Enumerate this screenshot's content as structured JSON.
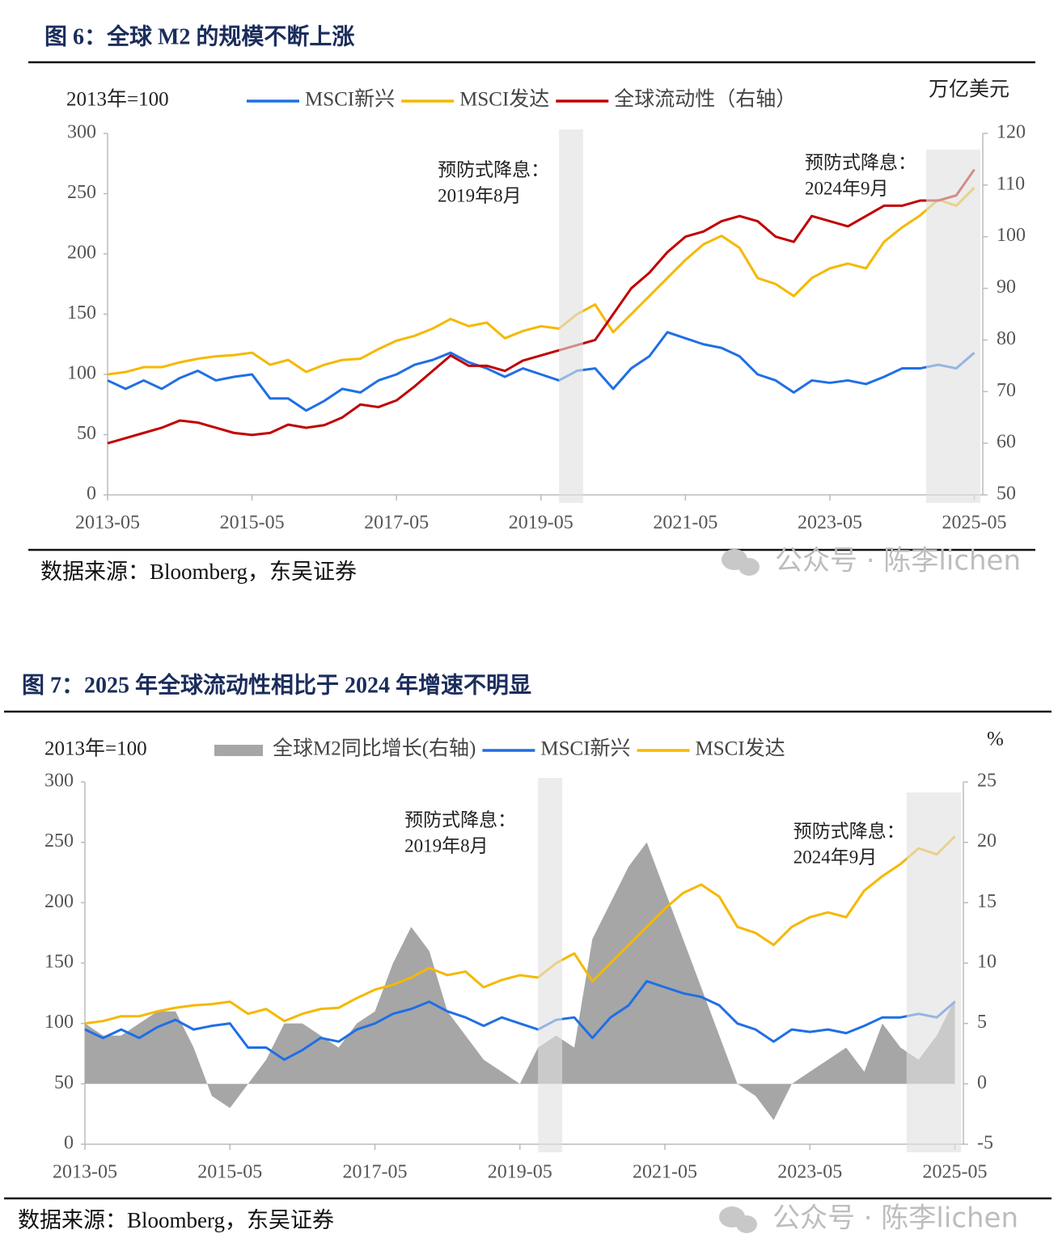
{
  "chart_data": [
    {
      "type": "line",
      "title": "图 6：全球 M2 的规模不断上涨",
      "ylabel": "2013年=100",
      "y2label": "万亿美元",
      "source": "数据来源：Bloomberg，东吴证券",
      "watermark": "公众号 · 陈李lichen",
      "x": [
        "2013-05",
        "2013-08",
        "2013-11",
        "2014-02",
        "2014-05",
        "2014-08",
        "2014-11",
        "2015-02",
        "2015-05",
        "2015-08",
        "2015-11",
        "2016-02",
        "2016-05",
        "2016-08",
        "2016-11",
        "2017-02",
        "2017-05",
        "2017-08",
        "2017-11",
        "2018-02",
        "2018-05",
        "2018-08",
        "2018-11",
        "2019-02",
        "2019-05",
        "2019-08",
        "2019-11",
        "2020-02",
        "2020-05",
        "2020-08",
        "2020-11",
        "2021-02",
        "2021-05",
        "2021-08",
        "2021-11",
        "2022-02",
        "2022-05",
        "2022-08",
        "2022-11",
        "2023-02",
        "2023-05",
        "2023-08",
        "2023-11",
        "2024-02",
        "2024-05",
        "2024-08",
        "2024-11",
        "2025-02",
        "2025-05"
      ],
      "xlim": [
        "2013-05",
        "2025-06"
      ],
      "xticks": [
        "2013-05",
        "2015-05",
        "2017-05",
        "2019-05",
        "2021-05",
        "2023-05",
        "2025-05"
      ],
      "ylim": [
        0,
        300
      ],
      "yticks": [
        0,
        50,
        100,
        150,
        200,
        250,
        300
      ],
      "y2lim": [
        50,
        120
      ],
      "y2ticks": [
        50,
        60,
        70,
        80,
        90,
        100,
        110,
        120
      ],
      "shaded_spans": [
        {
          "start": "2019-08",
          "end": "2019-12",
          "label": [
            "预防式降息：",
            "2019年8月"
          ]
        },
        {
          "start": "2024-09",
          "end": "2025-06",
          "label": [
            "预防式降息：",
            "2024年9月"
          ]
        }
      ],
      "series": [
        {
          "name": "MSCI新兴",
          "color": "#1f6fe5",
          "values": [
            95,
            88,
            95,
            88,
            97,
            103,
            95,
            98,
            100,
            80,
            80,
            70,
            78,
            88,
            85,
            95,
            100,
            108,
            112,
            118,
            110,
            105,
            98,
            105,
            100,
            95,
            103,
            105,
            88,
            105,
            115,
            135,
            130,
            125,
            122,
            115,
            100,
            95,
            85,
            95,
            93,
            95,
            92,
            98,
            105,
            105,
            108,
            105,
            118
          ]
        },
        {
          "name": "MSCI发达",
          "color": "#f5b800",
          "values": [
            100,
            102,
            106,
            106,
            110,
            113,
            115,
            116,
            118,
            108,
            112,
            102,
            108,
            112,
            113,
            121,
            128,
            132,
            138,
            146,
            140,
            143,
            130,
            136,
            140,
            138,
            150,
            158,
            135,
            150,
            165,
            180,
            195,
            208,
            215,
            205,
            180,
            175,
            165,
            180,
            188,
            192,
            188,
            210,
            222,
            232,
            245,
            240,
            255
          ]
        },
        {
          "name": "全球流动性（右轴）",
          "color": "#c00000",
          "axis": "y2",
          "values": [
            60,
            61,
            62,
            63,
            64.4,
            64,
            63,
            62,
            61.6,
            62,
            63.6,
            63,
            63.5,
            65,
            67.5,
            67,
            68.3,
            71,
            74,
            77,
            75,
            75,
            74,
            76,
            77,
            78,
            79,
            80,
            85,
            90,
            93,
            97,
            100,
            101,
            103,
            104,
            103,
            100,
            99,
            104,
            103,
            102,
            104,
            106,
            106,
            107,
            107,
            108,
            113
          ]
        }
      ]
    },
    {
      "type": "line",
      "title": "图 7：2025 年全球流动性相比于 2024 年增速不明显",
      "ylabel": "2013年=100",
      "y2label": "%",
      "source": "数据来源：Bloomberg，东吴证券",
      "watermark": "公众号 · 陈李lichen",
      "x": [
        "2013-05",
        "2013-08",
        "2013-11",
        "2014-02",
        "2014-05",
        "2014-08",
        "2014-11",
        "2015-02",
        "2015-05",
        "2015-08",
        "2015-11",
        "2016-02",
        "2016-05",
        "2016-08",
        "2016-11",
        "2017-02",
        "2017-05",
        "2017-08",
        "2017-11",
        "2018-02",
        "2018-05",
        "2018-08",
        "2018-11",
        "2019-02",
        "2019-05",
        "2019-08",
        "2019-11",
        "2020-02",
        "2020-05",
        "2020-08",
        "2020-11",
        "2021-02",
        "2021-05",
        "2021-08",
        "2021-11",
        "2022-02",
        "2022-05",
        "2022-08",
        "2022-11",
        "2023-02",
        "2023-05",
        "2023-08",
        "2023-11",
        "2024-02",
        "2024-05",
        "2024-08",
        "2024-11",
        "2025-02",
        "2025-05"
      ],
      "xlim": [
        "2013-05",
        "2025-06"
      ],
      "xticks": [
        "2013-05",
        "2015-05",
        "2017-05",
        "2019-05",
        "2021-05",
        "2023-05",
        "2025-05"
      ],
      "ylim": [
        0,
        300
      ],
      "yticks": [
        0,
        50,
        100,
        150,
        200,
        250,
        300
      ],
      "y2lim": [
        -5,
        25
      ],
      "y2ticks": [
        -5,
        0,
        5,
        10,
        15,
        20,
        25
      ],
      "shaded_spans": [
        {
          "start": "2019-08",
          "end": "2019-12",
          "label": [
            "预防式降息：",
            "2019年8月"
          ]
        },
        {
          "start": "2024-09",
          "end": "2025-06",
          "label": [
            "预防式降息：",
            "2024年9月"
          ]
        }
      ],
      "series": [
        {
          "name": "全球M2同比增长(右轴)",
          "color": "#a6a6a6",
          "axis": "y2",
          "style": "area",
          "values": [
            5,
            4,
            4,
            5,
            6,
            6,
            3,
            -1,
            -2,
            0,
            2,
            5,
            5,
            4,
            3,
            5,
            6,
            10,
            13,
            11,
            6,
            4,
            2,
            1,
            0,
            3,
            4,
            3,
            12,
            15,
            18,
            20,
            16,
            12,
            8,
            4,
            0,
            -1,
            -3,
            0,
            1,
            2,
            3,
            1,
            5,
            3,
            2,
            4,
            7
          ]
        },
        {
          "name": "MSCI新兴",
          "color": "#1f6fe5",
          "values": [
            95,
            88,
            95,
            88,
            97,
            103,
            95,
            98,
            100,
            80,
            80,
            70,
            78,
            88,
            85,
            95,
            100,
            108,
            112,
            118,
            110,
            105,
            98,
            105,
            100,
            95,
            103,
            105,
            88,
            105,
            115,
            135,
            130,
            125,
            122,
            115,
            100,
            95,
            85,
            95,
            93,
            95,
            92,
            98,
            105,
            105,
            108,
            105,
            118
          ]
        },
        {
          "name": "MSCI发达",
          "color": "#f5b800",
          "values": [
            100,
            102,
            106,
            106,
            110,
            113,
            115,
            116,
            118,
            108,
            112,
            102,
            108,
            112,
            113,
            121,
            128,
            132,
            138,
            146,
            140,
            143,
            130,
            136,
            140,
            138,
            150,
            158,
            135,
            150,
            165,
            180,
            195,
            208,
            215,
            205,
            180,
            175,
            165,
            180,
            188,
            192,
            188,
            210,
            222,
            232,
            245,
            240,
            255
          ]
        }
      ]
    }
  ]
}
